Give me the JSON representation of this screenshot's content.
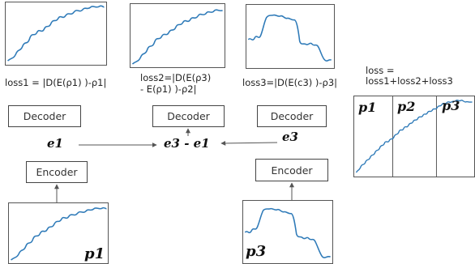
{
  "losses": {
    "loss1": "loss1 = |D(E(ρ1) )-ρ1|",
    "loss2_line1": "loss2=|D(E(ρ3)",
    "loss2_line2": "- E(ρ1) )-ρ2|",
    "loss3": "loss3=|D(E(c3) )-ρ3|",
    "total": "loss = loss1+loss2+loss3"
  },
  "blocks": {
    "decoder_label": "Decoder",
    "encoder_label": "Encoder"
  },
  "embeddings": {
    "e1": "e1",
    "e3": "e3",
    "diff": "e3 - e1"
  },
  "panel_labels": {
    "p1": "p1",
    "p2": "p2",
    "p3": "p3"
  },
  "colors": {
    "curve": "#2e7ab8",
    "border": "#555555"
  }
}
